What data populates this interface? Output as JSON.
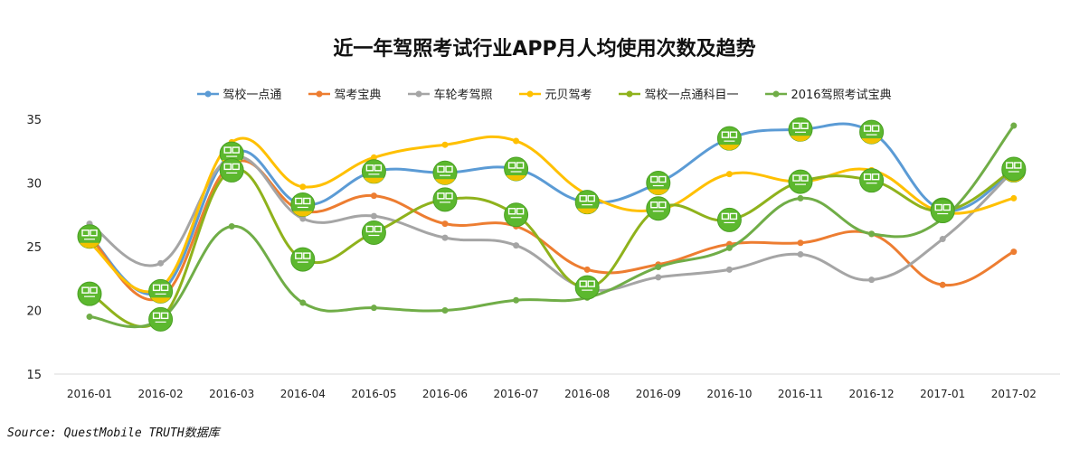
{
  "chart_data": {
    "type": "line",
    "title": "近一年驾照考试行业APP月人均使用次数及趋势",
    "xlabel": "",
    "ylabel": "",
    "ylim": [
      15,
      35
    ],
    "yticks": [
      15,
      20,
      25,
      30,
      35
    ],
    "grid": false,
    "legend": "top",
    "categories": [
      "2016-01",
      "2016-02",
      "2016-03",
      "2016-04",
      "2016-05",
      "2016-06",
      "2016-07",
      "2016-08",
      "2016-09",
      "2016-10",
      "2016-11",
      "2016-12",
      "2017-01",
      "2017-02"
    ],
    "series": [
      {
        "name": "驾校一点通",
        "color": "#5b9bd5",
        "marker": "app-logo-yidiantong",
        "values": [
          25.8,
          21.5,
          32.3,
          28.3,
          30.9,
          30.8,
          31.1,
          28.5,
          30.0,
          33.5,
          34.2,
          34.0,
          27.9,
          31.0
        ]
      },
      {
        "name": "驾考宝典",
        "color": "#ed7d31",
        "values": [
          25.8,
          21.0,
          31.5,
          27.8,
          29.0,
          26.8,
          26.6,
          23.2,
          23.6,
          25.2,
          25.3,
          26.0,
          22.0,
          24.6
        ]
      },
      {
        "name": "车轮考驾照",
        "color": "#a5a5a5",
        "values": [
          26.8,
          23.7,
          32.0,
          27.2,
          27.4,
          25.7,
          25.1,
          21.7,
          22.6,
          23.2,
          24.4,
          22.4,
          25.6,
          31.0
        ]
      },
      {
        "name": "元贝驾考",
        "color": "#ffc000",
        "values": [
          25.3,
          21.8,
          33.2,
          29.7,
          32.0,
          33.0,
          33.3,
          29.1,
          27.9,
          30.7,
          30.1,
          31.0,
          27.7,
          28.8
        ]
      },
      {
        "name": "驾校一点通科目一",
        "color": "#8fb21c",
        "marker": "app-logo-kemuyi",
        "values": [
          21.3,
          19.3,
          31.0,
          24.0,
          26.1,
          28.7,
          27.5,
          21.8,
          28.0,
          27.1,
          30.1,
          30.2,
          27.8,
          31.1
        ]
      },
      {
        "name": "2016驾照考试宝典",
        "color": "#70ad47",
        "values": [
          19.5,
          19.3,
          26.6,
          20.6,
          20.2,
          20.0,
          20.8,
          21.0,
          23.4,
          24.9,
          28.8,
          26.0,
          27.2,
          34.5
        ]
      }
    ],
    "marker_labels": {
      "top": "驾校",
      "yidiantong": "一点通",
      "kemuyi": "科目一"
    }
  },
  "source": "Source:   QuestMobile TRUTH数据库"
}
